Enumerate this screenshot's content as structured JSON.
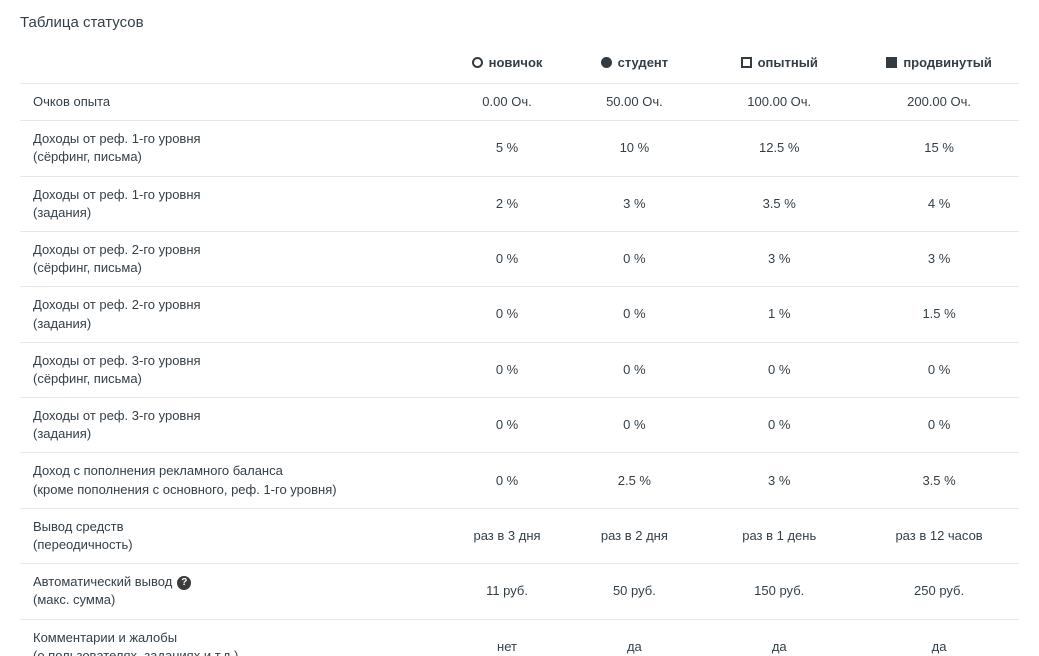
{
  "page": {
    "title": "Таблица статусов"
  },
  "icons": {
    "help": "?"
  },
  "colors": {
    "text": "#333f48",
    "border": "#e7e7e7",
    "icon": "#333b41",
    "background": "#ffffff"
  },
  "table": {
    "columns": [
      {
        "key": "novice",
        "label": "новичок",
        "icon": "circle-outline"
      },
      {
        "key": "student",
        "label": "студент",
        "icon": "circle-filled"
      },
      {
        "key": "experienced",
        "label": "опытный",
        "icon": "square-outline"
      },
      {
        "key": "advanced",
        "label": "продвинутый",
        "icon": "square-filled"
      }
    ],
    "rows": [
      {
        "label": "Очков опыта",
        "sublabel": "",
        "values": [
          "0.00 Оч.",
          "50.00 Оч.",
          "100.00 Оч.",
          "200.00 Оч."
        ]
      },
      {
        "label": "Доходы от реф. 1-го уровня",
        "sublabel": "(сёрфинг, письма)",
        "values": [
          "5 %",
          "10 %",
          "12.5 %",
          "15 %"
        ]
      },
      {
        "label": "Доходы от реф. 1-го уровня",
        "sublabel": "(задания)",
        "values": [
          "2 %",
          "3 %",
          "3.5 %",
          "4 %"
        ]
      },
      {
        "label": "Доходы от реф. 2-го уровня",
        "sublabel": "(сёрфинг, письма)",
        "values": [
          "0 %",
          "0 %",
          "3 %",
          "3 %"
        ]
      },
      {
        "label": "Доходы от реф. 2-го уровня",
        "sublabel": "(задания)",
        "values": [
          "0 %",
          "0 %",
          "1 %",
          "1.5 %"
        ]
      },
      {
        "label": "Доходы от реф. 3-го уровня",
        "sublabel": "(сёрфинг, письма)",
        "values": [
          "0 %",
          "0 %",
          "0 %",
          "0 %"
        ]
      },
      {
        "label": "Доходы от реф. 3-го уровня",
        "sublabel": "(задания)",
        "values": [
          "0 %",
          "0 %",
          "0 %",
          "0 %"
        ]
      },
      {
        "label": "Доход с пополнения рекламного баланса",
        "sublabel": "(кроме пополнения с основного, реф. 1-го уровня)",
        "values": [
          "0 %",
          "2.5 %",
          "3 %",
          "3.5 %"
        ]
      },
      {
        "label": "Вывод средств",
        "sublabel": "(переодичность)",
        "values": [
          "раз в 3 дня",
          "раз в 2 дня",
          "раз в 1 день",
          "раз в 12 часов"
        ]
      },
      {
        "label": "Автоматический вывод",
        "sublabel": "(макс. сумма)",
        "has_help_icon": true,
        "values": [
          "11 руб.",
          "50 руб.",
          "150 руб.",
          "250 руб."
        ]
      },
      {
        "label": "Комментарии и жалобы",
        "sublabel": "(о пользователях, заданиях и т.д.)",
        "values": [
          "нет",
          "да",
          "да",
          "да"
        ]
      }
    ]
  }
}
